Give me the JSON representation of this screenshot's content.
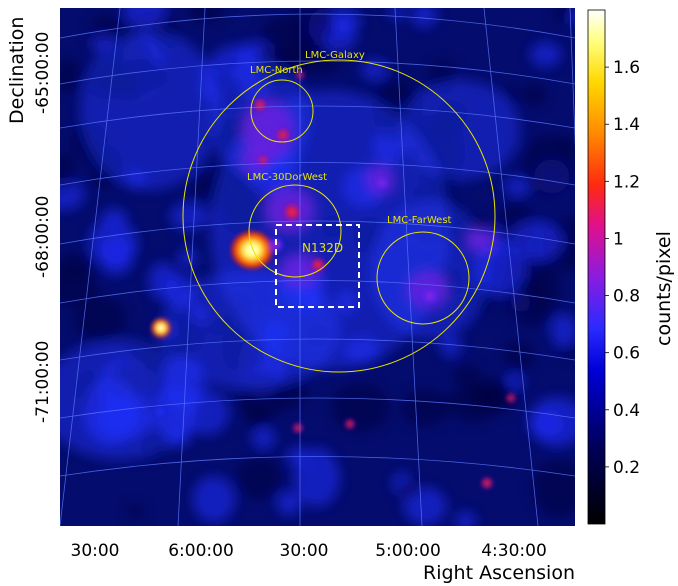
{
  "chart_data": {
    "type": "heatmap",
    "title": "",
    "xlabel": "Right Ascension",
    "ylabel": "Declination",
    "x_ticks": [
      "30:00",
      "6:00:00",
      "30:00",
      "5:00:00",
      "4:30:00"
    ],
    "y_ticks": [
      "-65:00:00",
      "-68:00:00",
      "-71:00:00"
    ],
    "colorbar": {
      "label": "counts/pixel",
      "ticks": [
        "0.2",
        "0.4",
        "0.6",
        "0.8",
        "1",
        "1.2",
        "1.4",
        "1.6"
      ],
      "tick_values": [
        0.2,
        0.4,
        0.6,
        0.8,
        1.0,
        1.2,
        1.4,
        1.6
      ],
      "range": [
        0.0,
        1.8
      ],
      "colormap": "gnuplot2-like (black, blue, purple, red, orange, yellow, white)"
    },
    "regions": [
      {
        "name": "LMC-Galaxy",
        "shape": "circle",
        "color": "#ffff00"
      },
      {
        "name": "LMC-North",
        "shape": "circle",
        "color": "#ffff00"
      },
      {
        "name": "LMC-30DorWest",
        "shape": "circle",
        "color": "#ffff00"
      },
      {
        "name": "LMC-FarWest",
        "shape": "circle",
        "color": "#ffff00"
      },
      {
        "name": "N132D",
        "shape": "box",
        "style": "dashed",
        "color": "#ffffff"
      }
    ],
    "grid": true
  }
}
